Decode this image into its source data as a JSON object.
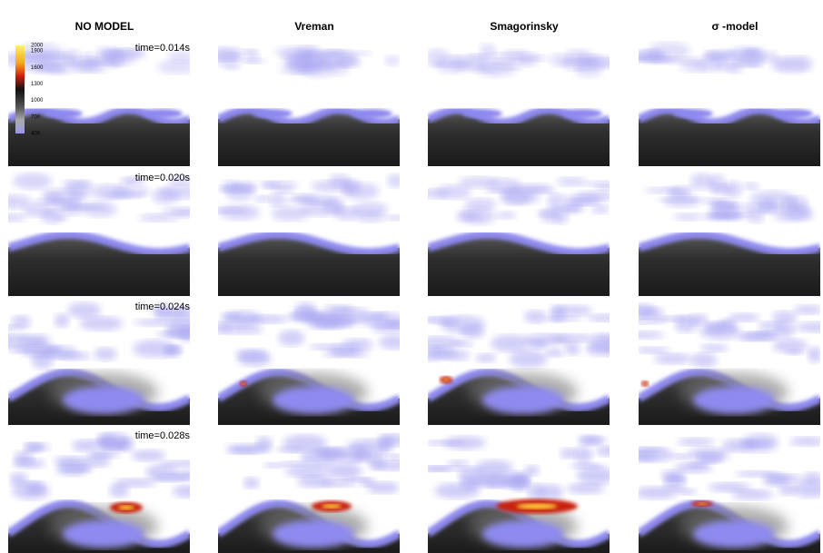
{
  "columns": [
    "NO MODEL",
    "Vreman",
    "Smagorinsky",
    "σ -model"
  ],
  "times": [
    "time=0.014s",
    "time=0.020s",
    "time=0.024s",
    "time=0.028s"
  ],
  "colorbar": {
    "ticks": [
      2000,
      1900,
      1600,
      1300,
      1000,
      700,
      400
    ]
  }
}
